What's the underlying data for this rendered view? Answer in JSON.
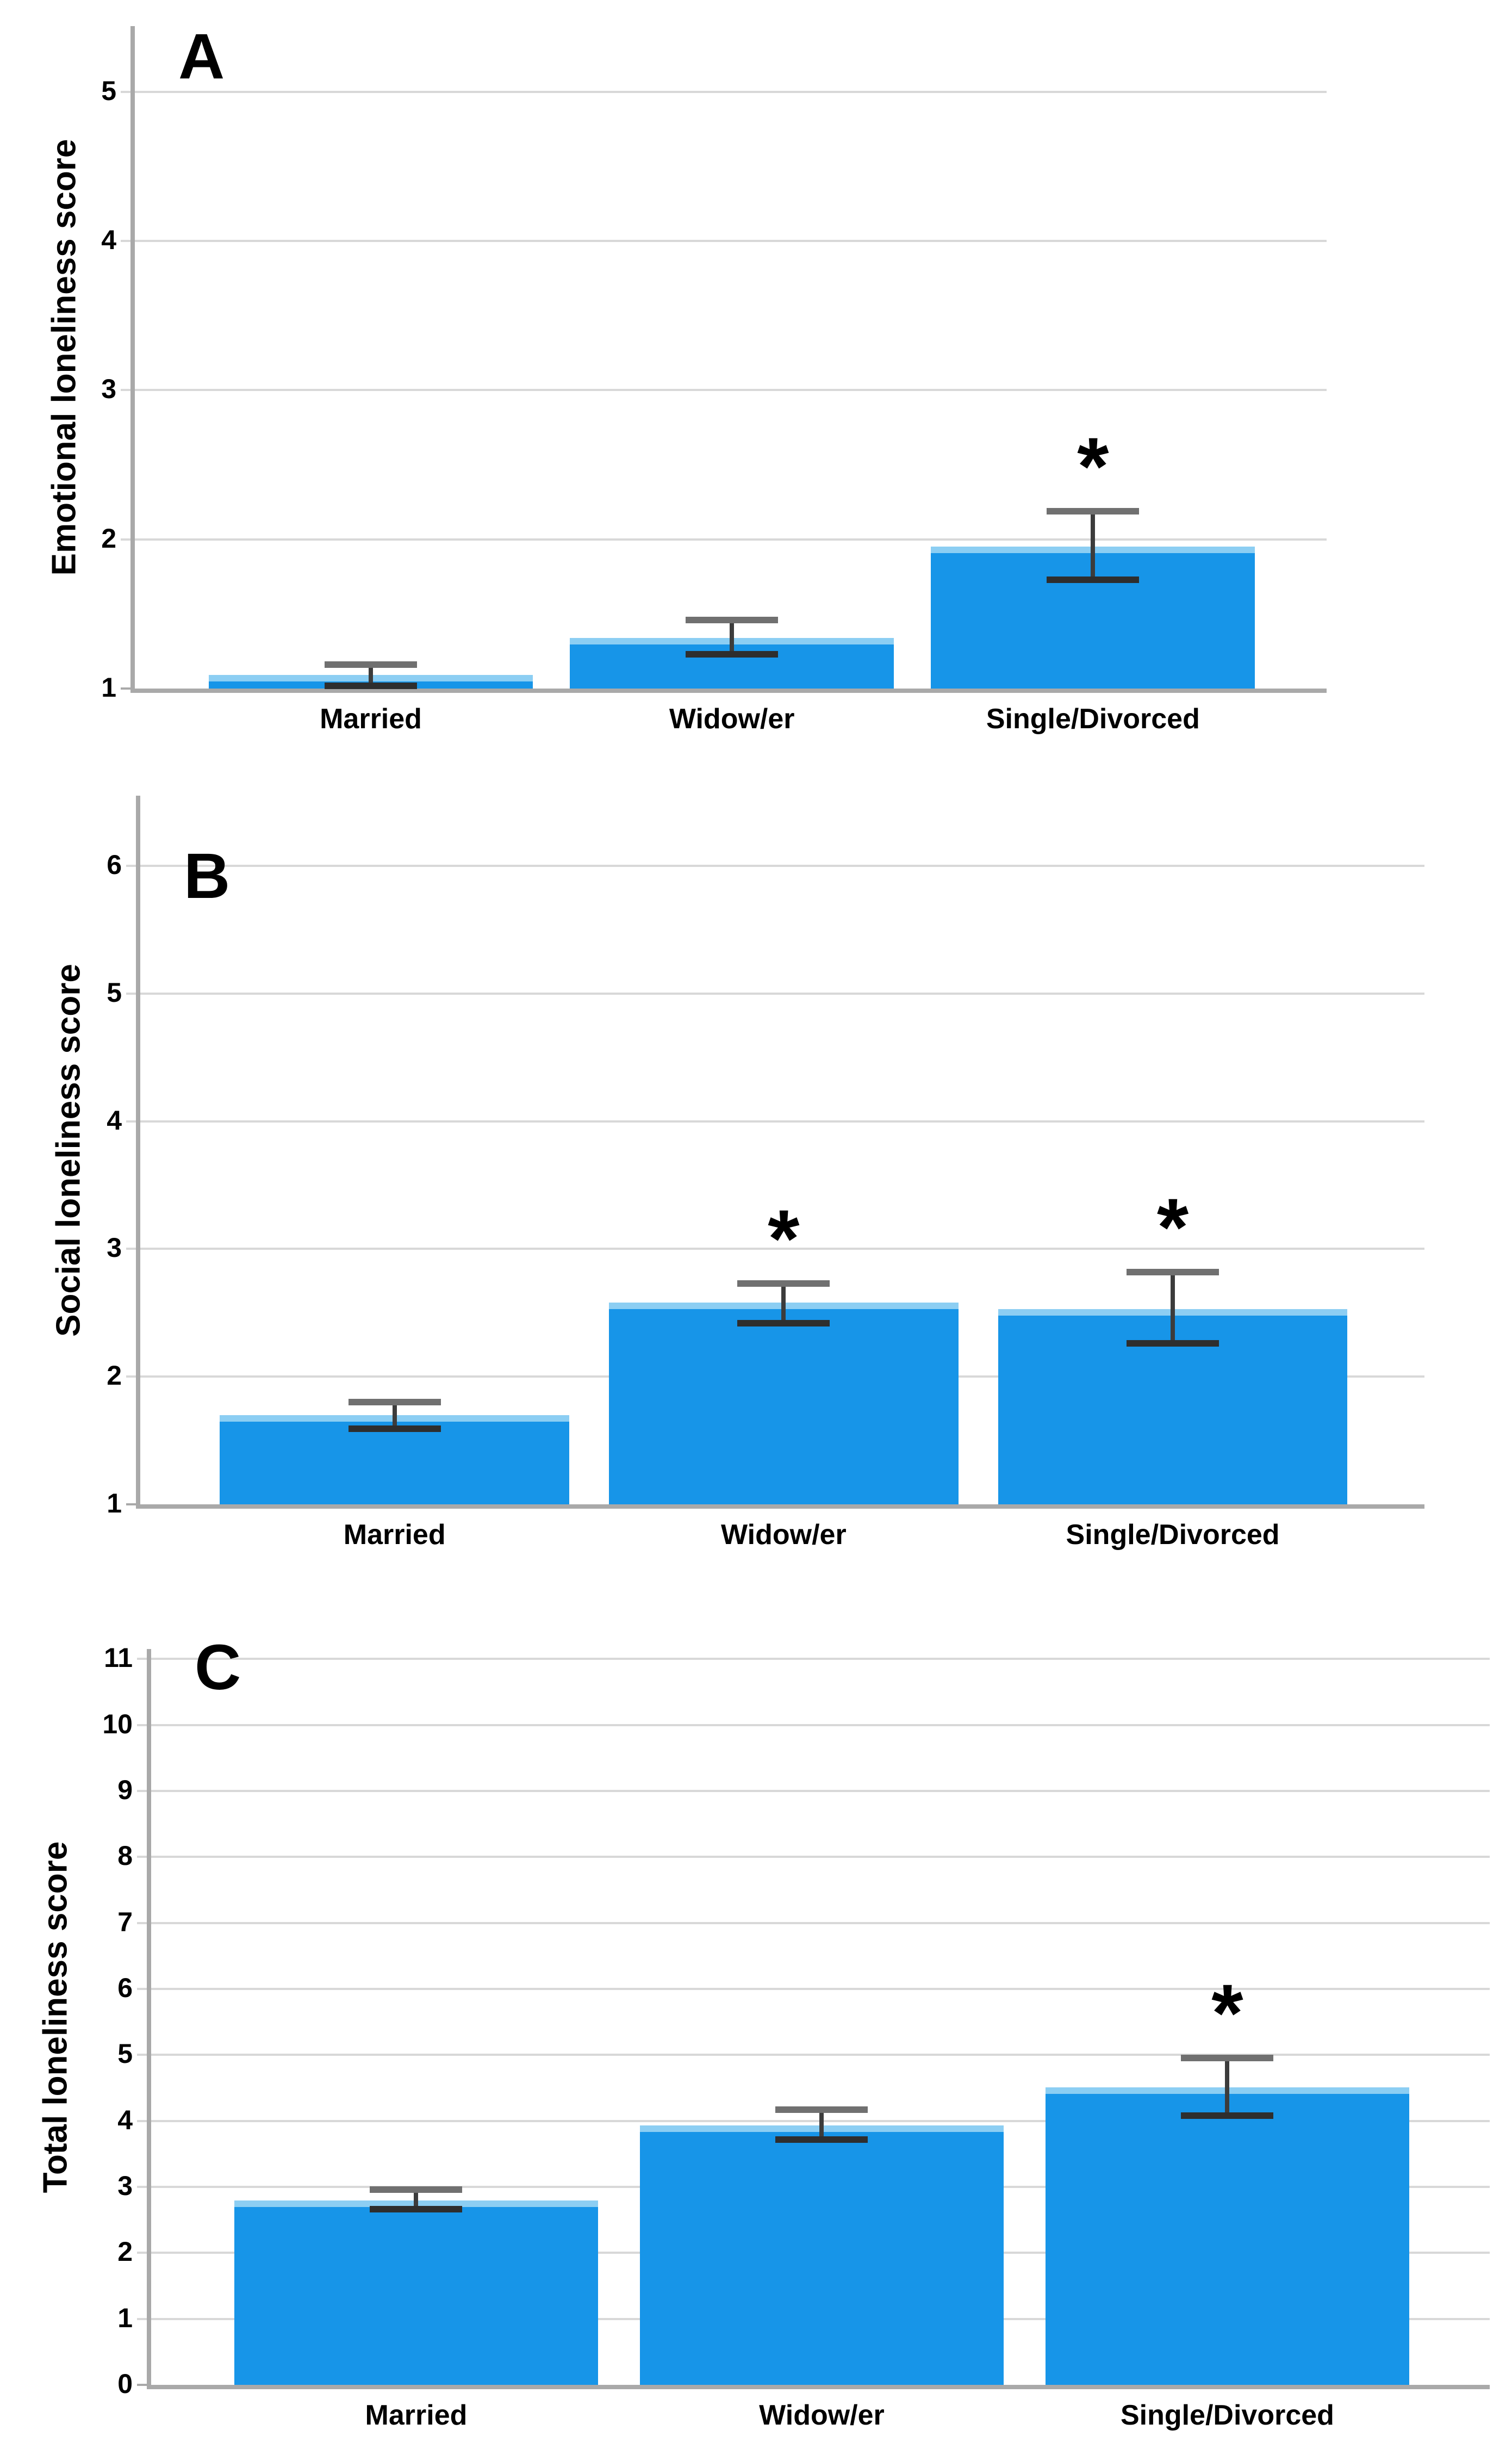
{
  "figure": {
    "description": "Three stacked bar charts of loneliness scores by marital status",
    "significance_marker": "*"
  },
  "colors": {
    "bar_fill": "#1795e8",
    "bar_top_edge": "#8ccef3",
    "gridline": "#d8d8d8",
    "axis_line": "#a9a9a9",
    "error_stem": "#3c3c3c",
    "error_cap_top": "#707070",
    "error_cap_bottom": "#2e2e2e",
    "text": "#000000"
  },
  "chart_data": [
    {
      "type": "bar",
      "panel_letter": "A",
      "ylabel": "Emotional loneliness score",
      "categories": [
        "Married",
        "Widow/er",
        "Single/Divorced"
      ],
      "values": [
        1.09,
        1.34,
        1.95
      ],
      "error_low": [
        1.02,
        1.23,
        1.73
      ],
      "error_high": [
        1.16,
        1.46,
        2.19
      ],
      "significant": [
        false,
        false,
        true
      ],
      "yticks": [
        1,
        2,
        3,
        4,
        5
      ],
      "ylim": [
        1,
        5.44
      ],
      "grid": true,
      "legend": "none"
    },
    {
      "type": "bar",
      "panel_letter": "B",
      "ylabel": "Social loneliness score",
      "categories": [
        "Married",
        "Widow/er",
        "Single/Divorced"
      ],
      "values": [
        1.7,
        2.58,
        2.53
      ],
      "error_low": [
        1.59,
        2.42,
        2.26
      ],
      "error_high": [
        1.8,
        2.73,
        2.82
      ],
      "significant": [
        false,
        true,
        true
      ],
      "yticks": [
        1,
        2,
        3,
        4,
        5,
        6
      ],
      "ylim": [
        1,
        6.55
      ],
      "grid": true,
      "legend": "none"
    },
    {
      "type": "bar",
      "panel_letter": "C",
      "ylabel": "Total loneliness score",
      "categories": [
        "Married",
        "Widow/er",
        "Single/Divorced"
      ],
      "values": [
        2.79,
        3.93,
        4.51
      ],
      "error_low": [
        2.66,
        3.72,
        4.08
      ],
      "error_high": [
        2.96,
        4.17,
        4.95
      ],
      "significant": [
        false,
        false,
        true
      ],
      "yticks": [
        0,
        1,
        2,
        3,
        4,
        5,
        6,
        7,
        8,
        9,
        10,
        11
      ],
      "ylim": [
        0,
        11.15
      ],
      "grid": true,
      "legend": "none"
    }
  ]
}
